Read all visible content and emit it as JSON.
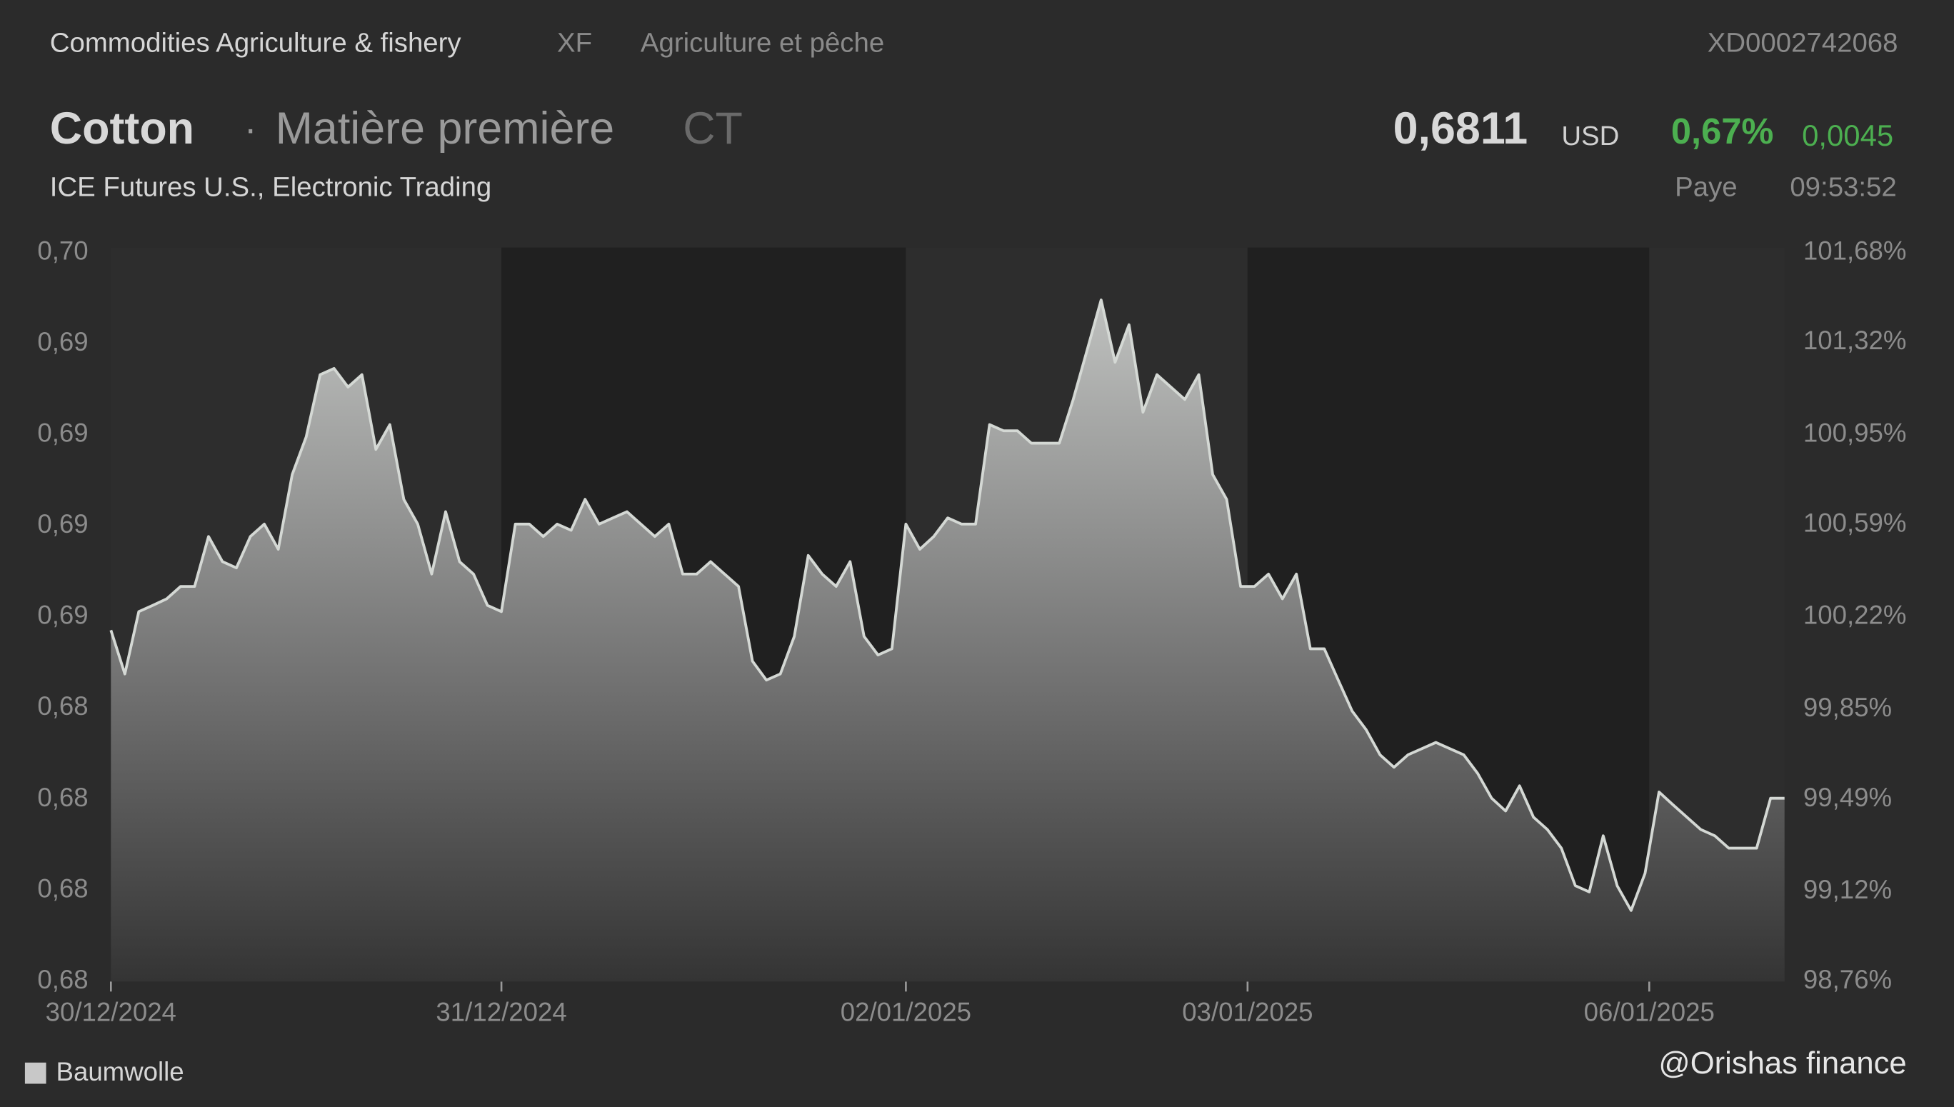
{
  "header": {
    "category": "Commodities Agriculture & fishery",
    "code": "XF",
    "category_fr": "Agriculture et pêche",
    "isin": "XD0002742068",
    "name": "Cotton",
    "separator": "·",
    "kind": "Matière première",
    "symbol": "CT",
    "price": "0,6811",
    "currency": "USD",
    "change_pct": "0,67%",
    "change": "0,0045",
    "exchange": "ICE Futures U.S., Electronic Trading",
    "status": "Paye",
    "time": "09:53:52"
  },
  "watermark": "@Orishas finance",
  "chart_data": {
    "type": "area",
    "series": [
      {
        "name": "Baumwolle",
        "color": "#d4d8d4",
        "values": [
          0.68964,
          0.68844,
          0.69015,
          0.69032,
          0.6905,
          0.69084,
          0.69084,
          0.69221,
          0.69152,
          0.69135,
          0.69221,
          0.69255,
          0.69186,
          0.69391,
          0.69494,
          0.69665,
          0.69682,
          0.69631,
          0.69665,
          0.6946,
          0.69528,
          0.69323,
          0.69255,
          0.69118,
          0.69289,
          0.69152,
          0.69118,
          0.69032,
          0.69015,
          0.69255,
          0.69255,
          0.69221,
          0.69255,
          0.69238,
          0.69323,
          0.69255,
          0.69272,
          0.69289,
          0.69255,
          0.69221,
          0.69255,
          0.69118,
          0.69118,
          0.69152,
          0.69118,
          0.69084,
          0.68879,
          0.68827,
          0.68844,
          0.68947,
          0.69169,
          0.69118,
          0.69084,
          0.69152,
          0.68947,
          0.68896,
          0.68913,
          0.69255,
          0.69186,
          0.69221,
          0.69272,
          0.69255,
          0.69255,
          0.69528,
          0.69511,
          0.69511,
          0.69477,
          0.69477,
          0.69477,
          0.69597,
          0.69733,
          0.6987,
          0.69699,
          0.69802,
          0.69562,
          0.69665,
          0.69631,
          0.69597,
          0.69665,
          0.69391,
          0.69323,
          0.69084,
          0.69084,
          0.69118,
          0.6905,
          0.69118,
          0.68913,
          0.68913,
          0.68827,
          0.68742,
          0.68691,
          0.68622,
          0.68588,
          0.68622,
          0.68639,
          0.68656,
          0.68639,
          0.68622,
          0.68571,
          0.68503,
          0.68468,
          0.68537,
          0.68451,
          0.68417,
          0.68366,
          0.68263,
          0.68246,
          0.684,
          0.68263,
          0.68195,
          0.68297,
          0.6852,
          0.68485,
          0.68451,
          0.68417,
          0.684,
          0.68366,
          0.68366,
          0.68366,
          0.68503,
          0.68503
        ]
      }
    ],
    "xlim": [
      0,
      120
    ],
    "xticks": [
      {
        "value": 0,
        "label": "30/12/2024"
      },
      {
        "value": 28,
        "label": "31/12/2024"
      },
      {
        "value": 57,
        "label": "02/01/2025"
      },
      {
        "value": 81.5,
        "label": "03/01/2025"
      },
      {
        "value": 110.3,
        "label": "06/01/2025"
      }
    ],
    "ylim": [
      0.68,
      0.7
    ],
    "yticks": [
      {
        "value": 0.68,
        "label": "0,68"
      },
      {
        "value": 0.6825,
        "label": "0,68"
      },
      {
        "value": 0.685,
        "label": "0,68"
      },
      {
        "value": 0.6875,
        "label": "0,68"
      },
      {
        "value": 0.69,
        "label": "0,69"
      },
      {
        "value": 0.6925,
        "label": "0,69"
      },
      {
        "value": 0.695,
        "label": "0,69"
      },
      {
        "value": 0.6975,
        "label": "0,69"
      },
      {
        "value": 0.7,
        "label": "0,70"
      }
    ],
    "y2lim": [
      98.76,
      101.68
    ],
    "y2ticks": [
      {
        "value": 98.76,
        "label": "98,76%"
      },
      {
        "value": 99.12,
        "label": "99,12%"
      },
      {
        "value": 99.49,
        "label": "99,49%"
      },
      {
        "value": 99.85,
        "label": "99,85%"
      },
      {
        "value": 100.22,
        "label": "100,22%"
      },
      {
        "value": 100.59,
        "label": "100,59%"
      },
      {
        "value": 100.95,
        "label": "100,95%"
      },
      {
        "value": 101.32,
        "label": "101,32%"
      },
      {
        "value": 101.68,
        "label": "101,68%"
      }
    ],
    "legend": "bottom-left"
  }
}
